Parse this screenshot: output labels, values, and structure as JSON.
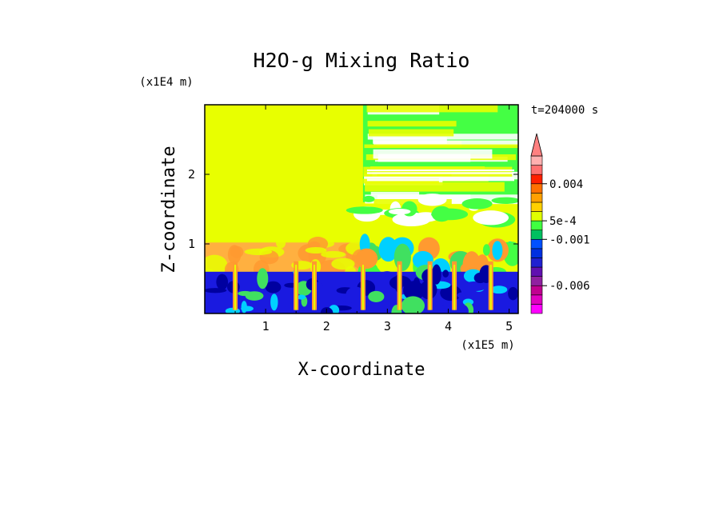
{
  "chart_data": {
    "type": "heatmap",
    "title": "H2O-g Mixing Ratio",
    "xlabel": "X-coordinate",
    "ylabel": "Z-coordinate",
    "x_unit": "(x1E5 m)",
    "y_unit": "(x1E4 m)",
    "time_label": "t=204000 s",
    "xlim": [
      0,
      5.15
    ],
    "ylim": [
      0,
      3.0
    ],
    "x_ticks": [
      1,
      2,
      3,
      4,
      5
    ],
    "x_tick_labels": [
      "1",
      "2",
      "3",
      "4",
      "5"
    ],
    "y_ticks": [
      1,
      2
    ],
    "y_tick_labels": [
      "1",
      "2"
    ],
    "colorbar": {
      "levels": [
        "-0.009",
        "-0.008",
        "-0.007",
        "-0.006",
        "-0.005",
        "-0.004",
        "-0.003",
        "-0.002",
        "-0.001",
        "0",
        "5e-4",
        "0.001",
        "0.002",
        "0.003",
        "0.004",
        "0.005",
        "0.006"
      ],
      "colors": [
        "#ff00ff",
        "#e000c0",
        "#c00090",
        "#9020a0",
        "#6010b0",
        "#2020d0",
        "#0030e0",
        "#0050ff",
        "#00c060",
        "#40ff40",
        "#e0ff00",
        "#ffd000",
        "#ffa000",
        "#ff7000",
        "#ff2000",
        "#ff7070",
        "#ffb0b0"
      ],
      "tick_labels": [
        {
          "label": "0.004",
          "value": 0.004
        },
        {
          "label": "5e-4",
          "value": 0.0005
        },
        {
          "label": "-0.001",
          "value": -0.001
        },
        {
          "label": "-0.006",
          "value": -0.006
        }
      ],
      "extend": "max"
    },
    "fields": {
      "background_color": "#e8ff00",
      "upper_right_band_color": "#44ff44",
      "upper_right_light_color": "#ffffff",
      "lower_layer_color": "#1a1ae0",
      "deep_color": "#0000a0",
      "boundary_orange": "#ffb040",
      "plume_orange": "#ff9a30",
      "cyan": "#00d0ff",
      "green": "#40e060"
    }
  }
}
